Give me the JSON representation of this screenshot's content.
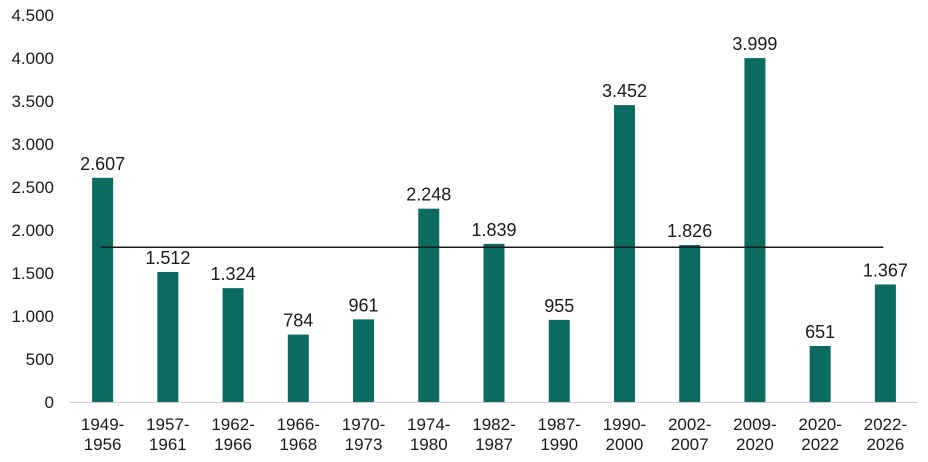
{
  "chart_data": {
    "type": "bar",
    "categories": [
      [
        "1949-",
        "1956"
      ],
      [
        "1957-",
        "1961"
      ],
      [
        "1962-",
        "1966"
      ],
      [
        "1966-",
        "1968"
      ],
      [
        "1970-",
        "1973"
      ],
      [
        "1974-",
        "1980"
      ],
      [
        "1982-",
        "1987"
      ],
      [
        "1987-",
        "1990"
      ],
      [
        "1990-",
        "2000"
      ],
      [
        "2002-",
        "2007"
      ],
      [
        "2009-",
        "2020"
      ],
      [
        "2020-",
        "2022"
      ],
      [
        "2022-",
        "2026"
      ]
    ],
    "values": [
      2607,
      1512,
      1324,
      784,
      961,
      2248,
      1839,
      955,
      3452,
      1826,
      3999,
      651,
      1367
    ],
    "data_labels": [
      "2.607",
      "1.512",
      "1.324",
      "784",
      "961",
      "2.248",
      "1.839",
      "955",
      "3.452",
      "1.826",
      "3.999",
      "651",
      "1.367"
    ],
    "yticks": [
      0,
      500,
      1000,
      1500,
      2000,
      2500,
      3000,
      3500,
      4000,
      4500
    ],
    "ytick_labels": [
      "0",
      "500",
      "1.000",
      "1.500",
      "2.000",
      "2.500",
      "3.000",
      "3.500",
      "4.000",
      "4.500"
    ],
    "ylim": [
      0,
      4500
    ],
    "reference_line": 1800,
    "bar_color": "#0b6b60",
    "title": "",
    "xlabel": "",
    "ylabel": "",
    "grid": false,
    "legend": "none"
  }
}
